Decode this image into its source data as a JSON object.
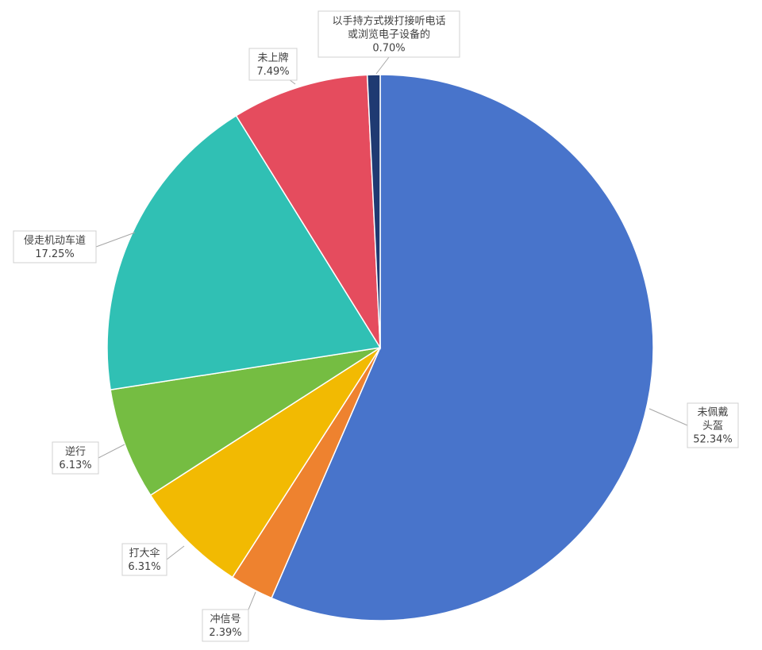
{
  "chart_data": {
    "type": "pie",
    "title": "",
    "slices": [
      {
        "label": "未佩戴头盔",
        "lines": [
          "未佩戴",
          "头盔"
        ],
        "value_label": "52.34%",
        "value": 52.34,
        "color": "#4874CB"
      },
      {
        "label": "冲信号",
        "lines": [
          "冲信号"
        ],
        "value_label": "2.39%",
        "value": 2.39,
        "color": "#EE822F"
      },
      {
        "label": "打大伞",
        "lines": [
          "打大伞"
        ],
        "value_label": "6.31%",
        "value": 6.31,
        "color": "#F2BA02"
      },
      {
        "label": "逆行",
        "lines": [
          "逆行"
        ],
        "value_label": "6.13%",
        "value": 6.13,
        "color": "#75BD42"
      },
      {
        "label": "侵走机动车道",
        "lines": [
          "侵走机动车道"
        ],
        "value_label": "17.25%",
        "value": 17.25,
        "color": "#30C0B4"
      },
      {
        "label": "未上牌",
        "lines": [
          "未上牌"
        ],
        "value_label": "7.49%",
        "value": 7.49,
        "color": "#E54C5E"
      },
      {
        "label": "以手持方式拨打接听电话或浏览电子设备的",
        "lines": [
          "以手持方式拨打接听电话",
          "或浏览电子设备的"
        ],
        "value_label": "0.70%",
        "value": 0.7,
        "color": "#1F3A72"
      }
    ]
  }
}
